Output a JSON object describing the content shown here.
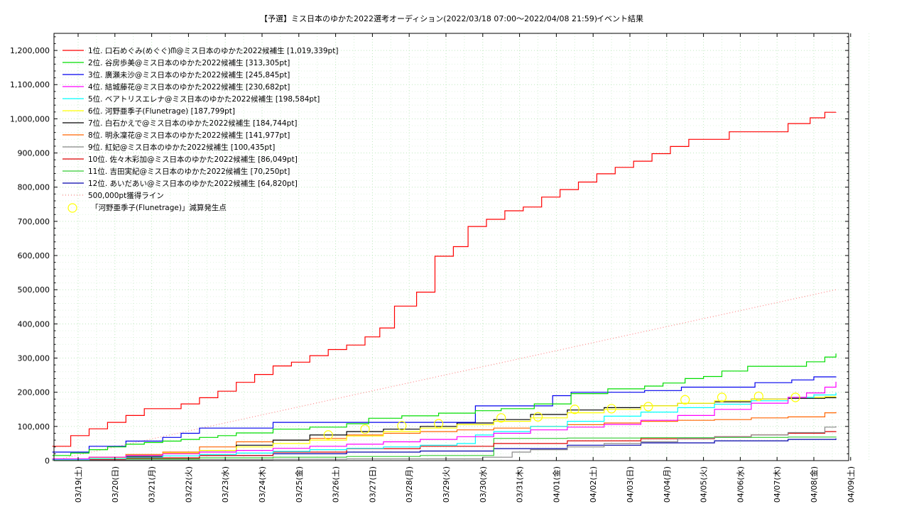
{
  "chart_data": {
    "type": "line",
    "title": "【予選】ミス日本のゆかた2022選考オーディション(2022/03/18 07:00〜2022/04/08 21:59)",
    "subtitle": "イベント結果",
    "xlabel": "",
    "ylabel": "",
    "x_start": "2022-03-18",
    "x_end": "2022-04-09",
    "x_ticks": [
      "03/19(土)",
      "03/20(日)",
      "03/21(月)",
      "03/22(火)",
      "03/23(水)",
      "03/24(木)",
      "03/25(金)",
      "03/26(土)",
      "03/27(日)",
      "03/28(月)",
      "03/29(火)",
      "03/30(水)",
      "03/31(木)",
      "04/01(金)",
      "04/02(土)",
      "04/03(日)",
      "04/04(月)",
      "04/05(火)",
      "04/06(水)",
      "04/07(木)",
      "04/08(金)",
      "04/09(土)"
    ],
    "ylim": [
      0,
      1250000
    ],
    "y_ticks": [
      "0",
      "100,000",
      "200,000",
      "300,000",
      "400,000",
      "500,000",
      "600,000",
      "700,000",
      "800,000",
      "900,000",
      "1,000,000",
      "1,100,000",
      "1,200,000"
    ],
    "grid": true,
    "legend_position": "top-left",
    "series": [
      {
        "name": "1位. 口石めぐみ(めぐぐ)ᗰ@ミス日本のゆかた2022候補生 [1,019,339pt]",
        "color": "#ff0000",
        "x": [
          0.3,
          0.8,
          1.3,
          1.8,
          2.3,
          2.8,
          3.3,
          3.8,
          4.3,
          4.8,
          5.3,
          5.8,
          6.3,
          6.8,
          7.3,
          7.8,
          8.3,
          8.8,
          9.2,
          9.6,
          10.2,
          10.7,
          11.2,
          11.6,
          12.1,
          12.6,
          13.1,
          13.6,
          14.1,
          14.6,
          15.1,
          15.6,
          16.1,
          16.6,
          17.1,
          17.6,
          18.1,
          18.7,
          19.3,
          20.3,
          20.9,
          21.3,
          21.6
        ],
        "y": [
          42000,
          73000,
          93000,
          112000,
          132000,
          152000,
          152000,
          166000,
          184000,
          203000,
          229000,
          252000,
          277000,
          288000,
          307000,
          325000,
          338000,
          362000,
          388000,
          452000,
          493000,
          598000,
          626000,
          685000,
          706000,
          731000,
          742000,
          771000,
          793000,
          815000,
          839000,
          858000,
          876000,
          898000,
          919000,
          940000,
          940000,
          962000,
          962000,
          986000,
          1003000,
          1019000,
          1019339
        ]
      },
      {
        "name": "2位. 谷房歩美@ミス日本のゆかた2022候補生 [313,305pt]",
        "color": "#00dd00",
        "x": [
          0.3,
          0.8,
          1.3,
          1.8,
          2.3,
          2.8,
          3.3,
          3.8,
          4.3,
          4.8,
          5.3,
          6.3,
          7.3,
          8.3,
          8.9,
          9.8,
          10.8,
          11.8,
          12.5,
          13.4,
          14.4,
          15.4,
          16.4,
          16.9,
          17.5,
          18.0,
          18.5,
          19.2,
          20.0,
          20.8,
          21.3,
          21.6
        ],
        "y": [
          15000,
          22000,
          32000,
          40000,
          48000,
          53000,
          57000,
          62000,
          68000,
          73000,
          81000,
          92000,
          98000,
          108000,
          124000,
          131000,
          139000,
          146000,
          152000,
          166000,
          196000,
          210000,
          218000,
          227000,
          240000,
          246000,
          262000,
          276000,
          276000,
          289000,
          303000,
          313305
        ]
      },
      {
        "name": "3位. 廣瀬未沙@ミス日本のゆかた2022候補生 [245,845pt]",
        "color": "#0000ee",
        "x": [
          0.3,
          1.3,
          2.3,
          3.3,
          3.8,
          4.3,
          5.3,
          6.3,
          7.3,
          8.3,
          9.3,
          10.3,
          11.8,
          12.8,
          13.9,
          14.4,
          15.4,
          16.4,
          17.4,
          18.4,
          19.4,
          20.4,
          21.0,
          21.6
        ],
        "y": [
          25000,
          42000,
          57000,
          68000,
          80000,
          95000,
          95000,
          112000,
          112000,
          112000,
          112000,
          112000,
          160000,
          160000,
          190000,
          200000,
          200000,
          205000,
          215000,
          215000,
          228000,
          236000,
          245000,
          245845
        ]
      },
      {
        "name": "4位. 結城藤花@ミス日本のゆかた2022候補生 [230,682pt]",
        "color": "#ff00ff",
        "x": [
          0.3,
          1.3,
          2.3,
          3.3,
          4.3,
          5.3,
          6.3,
          7.3,
          8.3,
          9.3,
          10.3,
          11.3,
          12.3,
          13.3,
          14.3,
          15.3,
          16.3,
          17.3,
          18.3,
          19.3,
          20.3,
          20.8,
          21.3,
          21.6
        ],
        "y": [
          5000,
          10000,
          15000,
          20000,
          25000,
          30000,
          36000,
          42000,
          48000,
          55000,
          62000,
          70000,
          80000,
          90000,
          98000,
          106000,
          118000,
          132000,
          150000,
          168000,
          185000,
          198000,
          215000,
          230682
        ]
      },
      {
        "name": "5位. ベアトリスエレナ@ミス日本のゆかた2022候補生 [198,584pt]",
        "color": "#00ffff",
        "x": [
          0.3,
          1.3,
          2.3,
          3.3,
          4.3,
          5.3,
          6.3,
          7.3,
          8.3,
          9.3,
          10.3,
          11.3,
          11.8,
          12.3,
          13.3,
          14.3,
          15.3,
          16.3,
          17.3,
          18.3,
          19.3,
          20.3,
          21.0,
          21.6
        ],
        "y": [
          3000,
          6000,
          10000,
          14000,
          18000,
          22000,
          27000,
          32000,
          36000,
          40000,
          45000,
          50000,
          75000,
          85000,
          100000,
          115000,
          130000,
          142000,
          155000,
          165000,
          175000,
          185000,
          192000,
          198584
        ]
      },
      {
        "name": "6位. 河野亜季子(Flunetrage) [187,799pt]",
        "color": "#ffff00",
        "x": [
          0.3,
          1.3,
          2.3,
          3.3,
          4.3,
          5.3,
          6.3,
          7.3,
          8.3,
          9.3,
          10.3,
          11.3,
          12.3,
          13.3,
          14.3,
          15.3,
          16.3,
          17.3,
          18.3,
          19.3,
          20.3,
          21.3,
          21.6
        ],
        "y": [
          3000,
          8000,
          15000,
          22000,
          30000,
          40000,
          50000,
          60000,
          72000,
          85000,
          95000,
          105000,
          115000,
          125000,
          140000,
          150000,
          160000,
          168000,
          175000,
          180000,
          185000,
          187000,
          187799
        ]
      },
      {
        "name": "7位. 白石かえで@ミス日本のゆかた2022候補生 [184,744pt]",
        "color": "#000000",
        "x": [
          0.3,
          1.3,
          2.3,
          3.3,
          4.3,
          5.3,
          6.3,
          7.3,
          8.3,
          9.3,
          10.3,
          11.3,
          12.3,
          13.3,
          14.3,
          15.3,
          16.3,
          17.3,
          18.3,
          19.3,
          20.3,
          21.3,
          21.6
        ],
        "y": [
          4000,
          8000,
          12000,
          20000,
          30000,
          45000,
          60000,
          75000,
          85000,
          92000,
          100000,
          110000,
          120000,
          135000,
          148000,
          155000,
          160000,
          168000,
          172000,
          180000,
          182000,
          184000,
          184744
        ]
      },
      {
        "name": "8位. 明永凜花@ミス日本のゆかた2022候補生 [141,977pt]",
        "color": "#ff6600",
        "x": [
          0.3,
          1.3,
          2.3,
          3.3,
          4.3,
          5.3,
          6.3,
          7.3,
          8.3,
          9.3,
          10.3,
          11.3,
          12.3,
          13.3,
          14.3,
          15.3,
          16.3,
          17.3,
          18.3,
          19.3,
          20.3,
          21.3,
          21.6
        ],
        "y": [
          5000,
          10000,
          18000,
          25000,
          40000,
          55000,
          60000,
          65000,
          75000,
          80000,
          85000,
          90000,
          95000,
          100000,
          105000,
          110000,
          115000,
          118000,
          120000,
          125000,
          128000,
          140000,
          141977
        ]
      },
      {
        "name": "9位. 紅妃@ミス日本のゆかた2022候補生 [100,435pt]",
        "color": "#888888",
        "x": [
          0.3,
          2.3,
          4.3,
          6.3,
          8.3,
          10.3,
          12.0,
          12.8,
          13.3,
          14.3,
          15.3,
          16.3,
          17.3,
          18.3,
          19.3,
          20.3,
          21.3,
          21.6
        ],
        "y": [
          1000,
          2000,
          3000,
          4000,
          5000,
          5000,
          10000,
          25000,
          32000,
          40000,
          50000,
          55000,
          65000,
          70000,
          75000,
          82000,
          98000,
          100435
        ]
      },
      {
        "name": "10位. 佐々木彩加@ミス日本のゆかた2022候補生 [86,049pt]",
        "color": "#dd0000",
        "x": [
          0.3,
          2.3,
          4.3,
          6.3,
          8.3,
          10.3,
          12.3,
          14.3,
          16.3,
          18.3,
          19.3,
          20.3,
          21.3,
          21.6
        ],
        "y": [
          3000,
          8000,
          15000,
          25000,
          35000,
          42000,
          50000,
          58000,
          64000,
          70000,
          75000,
          80000,
          85000,
          86049
        ]
      },
      {
        "name": "11位. 吉田実紀@ミス日本のゆかた2022候補生 [70,250pt]",
        "color": "#33cc33",
        "x": [
          0.3,
          2.3,
          4.3,
          6.3,
          8.3,
          10.3,
          12.3,
          14.3,
          16.3,
          18.3,
          20.3,
          21.6
        ],
        "y": [
          2000,
          5000,
          8000,
          10000,
          12000,
          15000,
          65000,
          66000,
          67000,
          68000,
          69000,
          70250
        ]
      },
      {
        "name": "12位. あいだあい@ミス日本のゆかた2022候補生 [64,820pt]",
        "color": "#0000aa",
        "x": [
          0.3,
          2.3,
          4.3,
          6.3,
          8.3,
          10.3,
          12.3,
          14.3,
          16.3,
          18.3,
          20.3,
          21.6
        ],
        "y": [
          2000,
          8000,
          15000,
          20000,
          25000,
          28000,
          35000,
          45000,
          52000,
          58000,
          62000,
          64820
        ]
      }
    ],
    "reference_line": {
      "name": "500,000pt獲得ライン",
      "color": "#ff8888",
      "x": [
        0.3,
        21.6
      ],
      "y": [
        0,
        500000
      ]
    },
    "decrease_points": {
      "name": "「河野亜季子(Flunetrage)」減算発生点",
      "color": "#ffff00",
      "x": [
        7.8,
        8.8,
        9.8,
        10.8,
        12.5,
        13.5,
        14.5,
        15.5,
        16.5,
        17.5,
        18.5,
        19.5,
        20.5
      ],
      "y": [
        75000,
        92000,
        102000,
        108000,
        125000,
        128000,
        150000,
        152000,
        158000,
        178000,
        185000,
        188000,
        185000
      ]
    }
  }
}
